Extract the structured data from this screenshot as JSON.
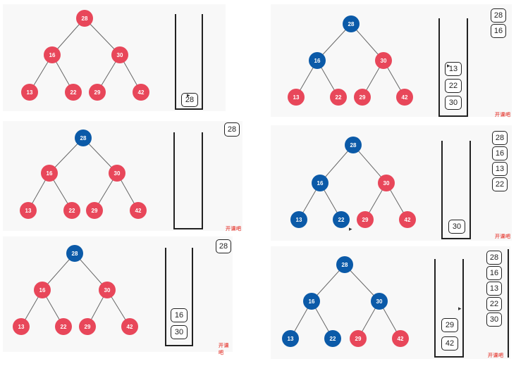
{
  "colors": {
    "unvisited": "#e8475a",
    "visited": "#0b5aa8",
    "edge": "#666666"
  },
  "tree": {
    "nodes": [
      {
        "id": "n28",
        "label": "28"
      },
      {
        "id": "n16",
        "label": "16"
      },
      {
        "id": "n30",
        "label": "30"
      },
      {
        "id": "n13",
        "label": "13"
      },
      {
        "id": "n22",
        "label": "22"
      },
      {
        "id": "n29",
        "label": "29"
      },
      {
        "id": "n42",
        "label": "42"
      }
    ],
    "edges": [
      [
        "n28",
        "n16"
      ],
      [
        "n28",
        "n30"
      ],
      [
        "n16",
        "n13"
      ],
      [
        "n16",
        "n22"
      ],
      [
        "n30",
        "n29"
      ],
      [
        "n30",
        "n42"
      ]
    ]
  },
  "panels": [
    {
      "visited": [],
      "stack": [
        "28"
      ],
      "output": []
    },
    {
      "visited": [
        "n28"
      ],
      "stack": [],
      "output": [
        "28"
      ]
    },
    {
      "visited": [
        "n28"
      ],
      "stack": [
        "16",
        "30"
      ],
      "output": [
        "28"
      ]
    },
    {
      "visited": [
        "n28",
        "n16"
      ],
      "stack": [
        "13",
        "22",
        "30"
      ],
      "output": [
        "28",
        "16"
      ]
    },
    {
      "visited": [
        "n28",
        "n16",
        "n13",
        "n22"
      ],
      "stack": [
        "30"
      ],
      "output": [
        "28",
        "16",
        "13",
        "22"
      ]
    },
    {
      "visited": [
        "n28",
        "n16",
        "n13",
        "n22",
        "n30"
      ],
      "stack": [
        "29",
        "42"
      ],
      "output": [
        "28",
        "16",
        "13",
        "22",
        "30"
      ]
    }
  ],
  "watermark": "开课吧"
}
